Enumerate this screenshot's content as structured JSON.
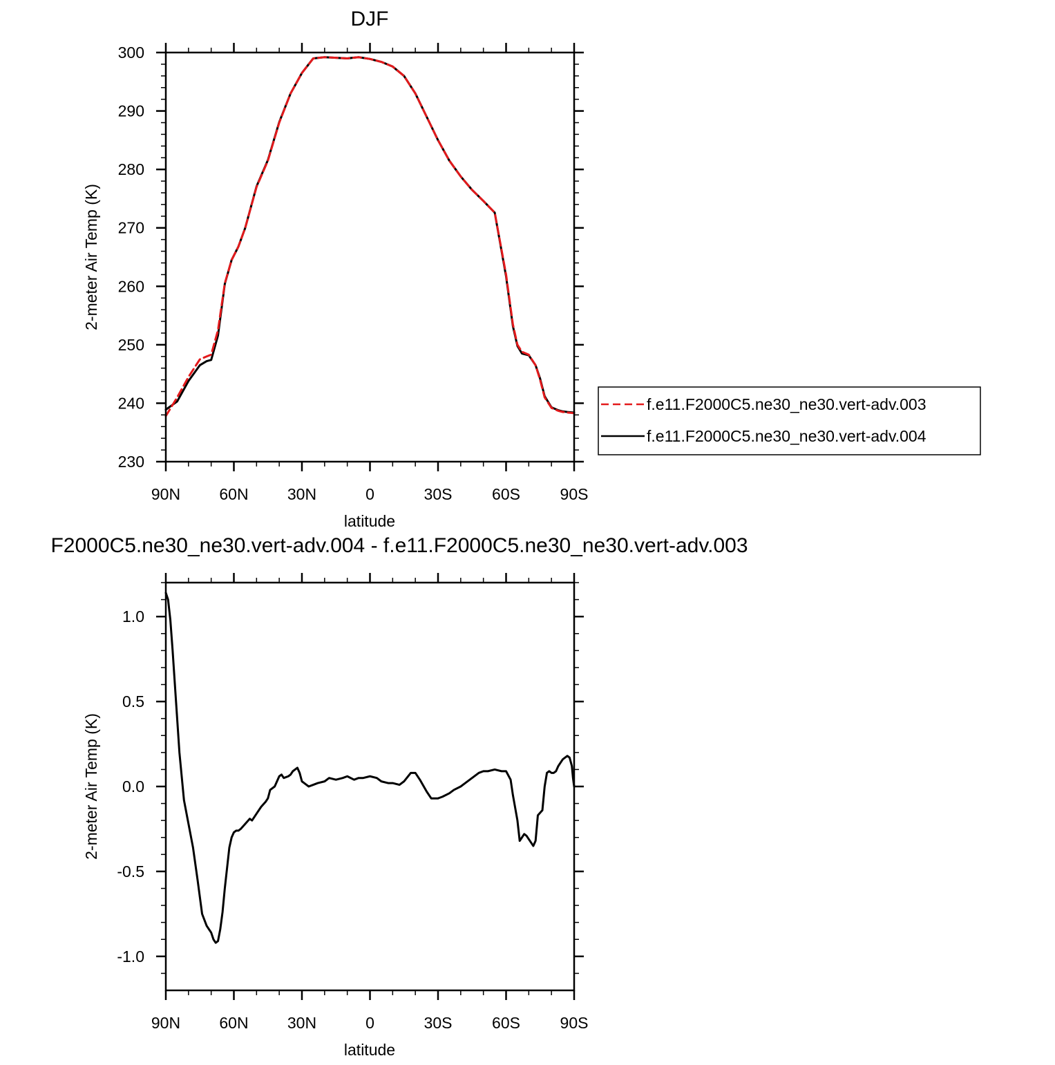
{
  "chart_data": [
    {
      "type": "line",
      "title": "DJF",
      "xlabel": "latitude",
      "ylabel": "2-meter Air Temp (K)",
      "xlim": [
        90,
        -90
      ],
      "ylim": [
        230,
        300
      ],
      "x_ticks": [
        90,
        60,
        30,
        0,
        -30,
        -60,
        -90
      ],
      "x_tick_labels": [
        "90N",
        "60N",
        "30N",
        "0",
        "30S",
        "60S",
        "90S"
      ],
      "y_ticks": [
        230,
        240,
        250,
        260,
        270,
        280,
        290,
        300
      ],
      "y_tick_labels": [
        "230",
        "240",
        "250",
        "260",
        "270",
        "280",
        "290",
        "300"
      ],
      "grid": false,
      "legend_position": "right",
      "series": [
        {
          "name": "f.e11.F2000C5.ne30_ne30.vert-adv.003",
          "color": "#e31a1c",
          "dash": "dashed",
          "x": [
            90,
            85,
            80,
            75,
            72,
            70,
            67,
            64,
            61,
            58,
            55,
            50,
            45,
            40,
            35,
            30,
            25,
            20,
            15,
            10,
            5,
            0,
            -5,
            -10,
            -15,
            -20,
            -25,
            -30,
            -35,
            -40,
            -45,
            -50,
            -55,
            -60,
            -63,
            -65,
            -67,
            -70,
            -73,
            -75,
            -77,
            -80,
            -83,
            -85,
            -87,
            -90
          ],
          "y": [
            237.8,
            241,
            244.5,
            247.5,
            248,
            248.3,
            252.5,
            260.5,
            264.5,
            266.8,
            270,
            277,
            281.5,
            288,
            293,
            296.5,
            299,
            299.2,
            299.1,
            299,
            299.2,
            298.9,
            298.4,
            297.6,
            296,
            293,
            289,
            285,
            281.5,
            278.8,
            276.5,
            274.6,
            272.6,
            262,
            253.5,
            250,
            248.8,
            248.3,
            246.5,
            244,
            241,
            239.2,
            238.7,
            238.5,
            238.4,
            238.3
          ]
        },
        {
          "name": "f.e11.F2000C5.ne30_ne30.vert-adv.004",
          "color": "#000000",
          "dash": "solid",
          "x": [
            90,
            85,
            80,
            75,
            72,
            70,
            67,
            64,
            61,
            58,
            55,
            50,
            45,
            40,
            35,
            30,
            25,
            20,
            15,
            10,
            5,
            0,
            -5,
            -10,
            -15,
            -20,
            -25,
            -30,
            -35,
            -40,
            -45,
            -50,
            -55,
            -60,
            -63,
            -65,
            -67,
            -70,
            -73,
            -75,
            -77,
            -80,
            -83,
            -85,
            -87,
            -90
          ],
          "y": [
            238.9,
            240.3,
            243.8,
            246.5,
            247.2,
            247.4,
            251.6,
            260.4,
            264.5,
            266.8,
            270,
            277.1,
            281.6,
            288.1,
            293,
            296.5,
            299,
            299.2,
            299.1,
            299,
            299.2,
            298.9,
            298.4,
            297.6,
            296,
            293,
            289,
            285,
            281.5,
            278.8,
            276.5,
            274.6,
            272.6,
            261.7,
            253.2,
            249.8,
            248.5,
            248.2,
            246.5,
            244.2,
            241.2,
            239.3,
            238.8,
            238.6,
            238.5,
            238.4
          ]
        }
      ]
    },
    {
      "type": "line",
      "title": "F2000C5.ne30_ne30.vert-adv.004 - f.e11.F2000C5.ne30_ne30.vert-adv.003",
      "xlabel": "latitude",
      "ylabel": "2-meter Air Temp (K)",
      "xlim": [
        90,
        -90
      ],
      "ylim": [
        -1.2,
        1.2
      ],
      "x_ticks": [
        90,
        60,
        30,
        0,
        -30,
        -60,
        -90
      ],
      "x_tick_labels": [
        "90N",
        "60N",
        "30N",
        "0",
        "30S",
        "60S",
        "90S"
      ],
      "y_ticks": [
        -1.0,
        -0.5,
        0.0,
        0.5,
        1.0
      ],
      "y_tick_labels": [
        "-1.0",
        "-0.5",
        "0.0",
        "0.5",
        "1.0"
      ],
      "grid": false,
      "series": [
        {
          "color": "#000000",
          "dash": "solid",
          "x": [
            90,
            89,
            88,
            87,
            86,
            84,
            82,
            80,
            78,
            76,
            74,
            72,
            71,
            70,
            69,
            68,
            67,
            66,
            65,
            64,
            63,
            62,
            61,
            60,
            59,
            58,
            57,
            55,
            53,
            52,
            50,
            48,
            46,
            45,
            44,
            42,
            41,
            40,
            39,
            38,
            36,
            35,
            34,
            32,
            31,
            30,
            29,
            28,
            27,
            25,
            23,
            20,
            18,
            15,
            12,
            10,
            7,
            5,
            3,
            0,
            -3,
            -5,
            -8,
            -10,
            -13,
            -15,
            -18,
            -20,
            -22,
            -25,
            -27,
            -30,
            -32,
            -35,
            -37,
            -40,
            -42,
            -45,
            -48,
            -50,
            -52,
            -55,
            -58,
            -60,
            -62,
            -63,
            -65,
            -66,
            -67,
            -68,
            -69,
            -70,
            -72,
            -73,
            -74,
            -76,
            -77,
            -78,
            -79,
            -80,
            -81,
            -82,
            -83,
            -84,
            -85,
            -86,
            -87,
            -88,
            -89,
            -89.5,
            -90
          ],
          "y": [
            1.14,
            1.1,
            0.98,
            0.8,
            0.6,
            0.2,
            -0.08,
            -0.22,
            -0.36,
            -0.55,
            -0.75,
            -0.82,
            -0.84,
            -0.86,
            -0.9,
            -0.92,
            -0.91,
            -0.84,
            -0.74,
            -0.6,
            -0.48,
            -0.36,
            -0.3,
            -0.27,
            -0.26,
            -0.26,
            -0.25,
            -0.22,
            -0.19,
            -0.2,
            -0.16,
            -0.12,
            -0.09,
            -0.07,
            -0.02,
            0.0,
            0.03,
            0.06,
            0.07,
            0.05,
            0.06,
            0.07,
            0.09,
            0.11,
            0.08,
            0.03,
            0.02,
            0.01,
            0.0,
            0.01,
            0.02,
            0.03,
            0.05,
            0.04,
            0.05,
            0.06,
            0.04,
            0.05,
            0.05,
            0.06,
            0.05,
            0.03,
            0.02,
            0.02,
            0.01,
            0.03,
            0.08,
            0.08,
            0.04,
            -0.03,
            -0.07,
            -0.07,
            -0.06,
            -0.04,
            -0.02,
            0.0,
            0.02,
            0.05,
            0.08,
            0.09,
            0.09,
            0.1,
            0.09,
            0.09,
            0.04,
            -0.05,
            -0.2,
            -0.32,
            -0.3,
            -0.28,
            -0.29,
            -0.31,
            -0.35,
            -0.32,
            -0.17,
            -0.14,
            0.0,
            0.08,
            0.09,
            0.08,
            0.08,
            0.09,
            0.12,
            0.14,
            0.16,
            0.17,
            0.18,
            0.17,
            0.12,
            0.05,
            0.0
          ]
        }
      ]
    }
  ]
}
